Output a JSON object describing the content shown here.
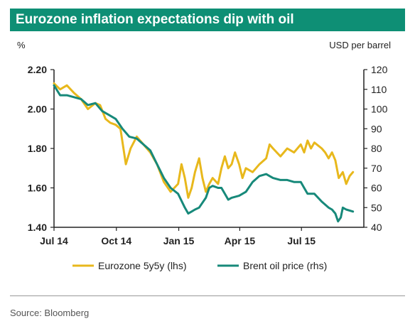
{
  "title": "Eurozone inflation expectations dip with oil",
  "source": "Source: Bloomberg",
  "colors": {
    "header_bg": "#0e8f75",
    "eurozone": "#e8b81c",
    "brent": "#17897a"
  },
  "chart_data": {
    "type": "line",
    "left_axis_label": "%",
    "right_axis_label": "USD per barrel",
    "x_ticks": [
      "Jul 14",
      "Oct 14",
      "Jan 15",
      "Apr 15",
      "Jul 15"
    ],
    "y_left_ticks": [
      "2.20",
      "2.00",
      "1.80",
      "1.60",
      "1.40"
    ],
    "y_right_ticks": [
      "120",
      "110",
      "100",
      "90",
      "80",
      "70",
      "60",
      "50",
      "40"
    ],
    "ylim_left": [
      1.4,
      2.2
    ],
    "ylim_right": [
      40,
      120
    ],
    "legend_position": "bottom",
    "series": [
      {
        "name": "Eurozone 5y5y (lhs)",
        "axis": "left",
        "points": [
          [
            "2014-07-01",
            2.13
          ],
          [
            "2014-07-10",
            2.1
          ],
          [
            "2014-07-20",
            2.12
          ],
          [
            "2014-07-31",
            2.08
          ],
          [
            "2014-08-10",
            2.05
          ],
          [
            "2014-08-20",
            2.0
          ],
          [
            "2014-08-31",
            2.03
          ],
          [
            "2014-09-07",
            2.02
          ],
          [
            "2014-09-15",
            1.95
          ],
          [
            "2014-09-22",
            1.93
          ],
          [
            "2014-09-30",
            1.92
          ],
          [
            "2014-10-07",
            1.9
          ],
          [
            "2014-10-15",
            1.72
          ],
          [
            "2014-10-22",
            1.8
          ],
          [
            "2014-10-31",
            1.86
          ],
          [
            "2014-11-10",
            1.82
          ],
          [
            "2014-11-20",
            1.78
          ],
          [
            "2014-11-30",
            1.72
          ],
          [
            "2014-12-10",
            1.63
          ],
          [
            "2014-12-20",
            1.58
          ],
          [
            "2014-12-31",
            1.62
          ],
          [
            "2015-01-05",
            1.72
          ],
          [
            "2015-01-10",
            1.65
          ],
          [
            "2015-01-15",
            1.55
          ],
          [
            "2015-01-20",
            1.6
          ],
          [
            "2015-01-25",
            1.68
          ],
          [
            "2015-01-31",
            1.75
          ],
          [
            "2015-02-05",
            1.65
          ],
          [
            "2015-02-10",
            1.58
          ],
          [
            "2015-02-15",
            1.62
          ],
          [
            "2015-02-20",
            1.65
          ],
          [
            "2015-02-28",
            1.62
          ],
          [
            "2015-03-05",
            1.7
          ],
          [
            "2015-03-10",
            1.76
          ],
          [
            "2015-03-15",
            1.7
          ],
          [
            "2015-03-20",
            1.72
          ],
          [
            "2015-03-25",
            1.78
          ],
          [
            "2015-03-31",
            1.72
          ],
          [
            "2015-04-05",
            1.65
          ],
          [
            "2015-04-10",
            1.7
          ],
          [
            "2015-04-20",
            1.68
          ],
          [
            "2015-04-30",
            1.72
          ],
          [
            "2015-05-10",
            1.75
          ],
          [
            "2015-05-15",
            1.82
          ],
          [
            "2015-05-20",
            1.8
          ],
          [
            "2015-05-31",
            1.76
          ],
          [
            "2015-06-10",
            1.8
          ],
          [
            "2015-06-20",
            1.78
          ],
          [
            "2015-06-30",
            1.82
          ],
          [
            "2015-07-05",
            1.78
          ],
          [
            "2015-07-10",
            1.84
          ],
          [
            "2015-07-15",
            1.8
          ],
          [
            "2015-07-20",
            1.83
          ],
          [
            "2015-07-31",
            1.8
          ],
          [
            "2015-08-05",
            1.78
          ],
          [
            "2015-08-10",
            1.75
          ],
          [
            "2015-08-15",
            1.78
          ],
          [
            "2015-08-20",
            1.74
          ],
          [
            "2015-08-25",
            1.65
          ],
          [
            "2015-08-31",
            1.68
          ],
          [
            "2015-09-05",
            1.62
          ],
          [
            "2015-09-10",
            1.66
          ],
          [
            "2015-09-15",
            1.68
          ]
        ]
      },
      {
        "name": "Brent oil price (rhs)",
        "axis": "right",
        "points": [
          [
            "2014-07-01",
            112
          ],
          [
            "2014-07-10",
            107
          ],
          [
            "2014-07-20",
            107
          ],
          [
            "2014-07-31",
            106
          ],
          [
            "2014-08-10",
            105
          ],
          [
            "2014-08-20",
            102
          ],
          [
            "2014-08-31",
            103
          ],
          [
            "2014-09-10",
            99
          ],
          [
            "2014-09-20",
            97
          ],
          [
            "2014-09-30",
            95
          ],
          [
            "2014-10-10",
            90
          ],
          [
            "2014-10-20",
            86
          ],
          [
            "2014-10-31",
            85
          ],
          [
            "2014-11-10",
            82
          ],
          [
            "2014-11-20",
            79
          ],
          [
            "2014-11-30",
            72
          ],
          [
            "2014-12-10",
            65
          ],
          [
            "2014-12-20",
            60
          ],
          [
            "2014-12-31",
            57
          ],
          [
            "2015-01-10",
            50
          ],
          [
            "2015-01-15",
            47
          ],
          [
            "2015-01-20",
            48
          ],
          [
            "2015-01-25",
            49
          ],
          [
            "2015-01-31",
            50
          ],
          [
            "2015-02-10",
            55
          ],
          [
            "2015-02-15",
            60
          ],
          [
            "2015-02-20",
            61
          ],
          [
            "2015-02-28",
            60
          ],
          [
            "2015-03-05",
            60
          ],
          [
            "2015-03-10",
            57
          ],
          [
            "2015-03-15",
            54
          ],
          [
            "2015-03-20",
            55
          ],
          [
            "2015-03-31",
            56
          ],
          [
            "2015-04-10",
            58
          ],
          [
            "2015-04-20",
            63
          ],
          [
            "2015-04-30",
            66
          ],
          [
            "2015-05-10",
            67
          ],
          [
            "2015-05-20",
            65
          ],
          [
            "2015-05-31",
            64
          ],
          [
            "2015-06-10",
            64
          ],
          [
            "2015-06-20",
            63
          ],
          [
            "2015-06-30",
            63
          ],
          [
            "2015-07-05",
            60
          ],
          [
            "2015-07-10",
            57
          ],
          [
            "2015-07-20",
            57
          ],
          [
            "2015-07-31",
            53
          ],
          [
            "2015-08-10",
            50
          ],
          [
            "2015-08-15",
            49
          ],
          [
            "2015-08-20",
            47
          ],
          [
            "2015-08-24",
            43
          ],
          [
            "2015-08-28",
            45
          ],
          [
            "2015-08-31",
            50
          ],
          [
            "2015-09-05",
            49
          ],
          [
            "2015-09-15",
            48
          ]
        ]
      }
    ]
  }
}
